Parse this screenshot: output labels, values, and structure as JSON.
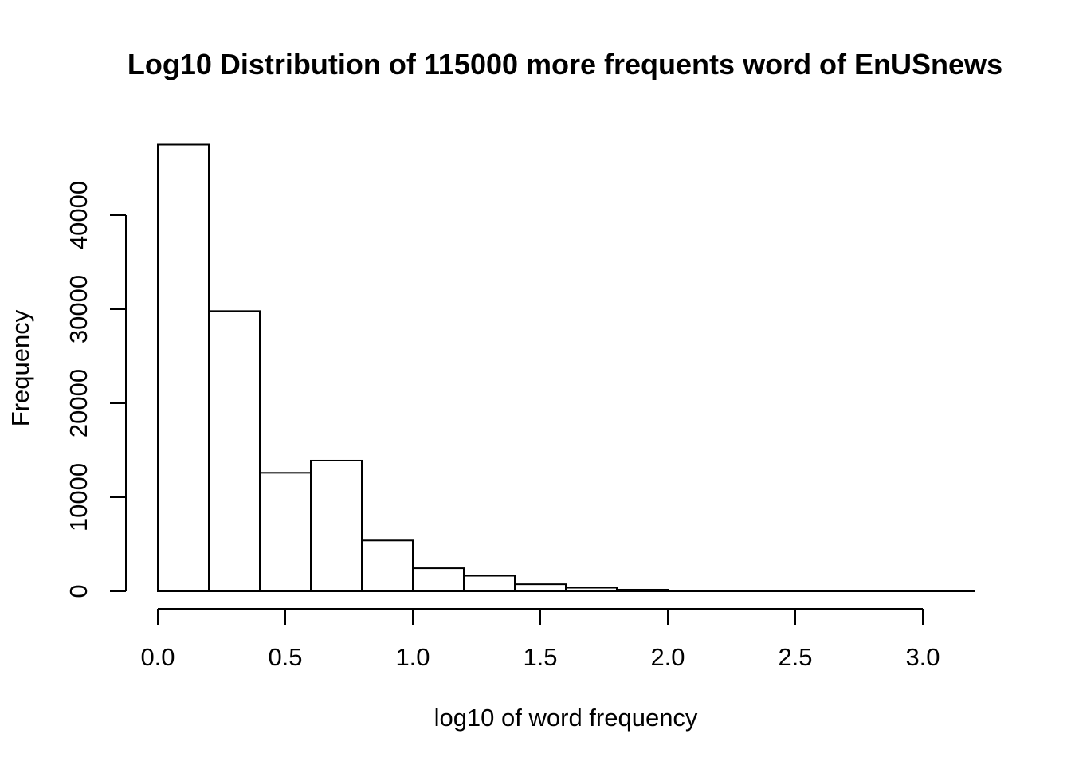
{
  "chart_data": {
    "type": "bar",
    "title": "Log10 Distribution of 115000 more frequents word of EnUSnews",
    "xlabel": "log10 of word frequency",
    "ylabel": "Frequency",
    "bins": [
      {
        "x0": 0.0,
        "x1": 0.2,
        "count": 47500
      },
      {
        "x0": 0.2,
        "x1": 0.4,
        "count": 29800
      },
      {
        "x0": 0.4,
        "x1": 0.6,
        "count": 12600
      },
      {
        "x0": 0.6,
        "x1": 0.8,
        "count": 13900
      },
      {
        "x0": 0.8,
        "x1": 1.0,
        "count": 5400
      },
      {
        "x0": 1.0,
        "x1": 1.2,
        "count": 2450
      },
      {
        "x0": 1.2,
        "x1": 1.4,
        "count": 1650
      },
      {
        "x0": 1.4,
        "x1": 1.6,
        "count": 750
      },
      {
        "x0": 1.6,
        "x1": 1.8,
        "count": 380
      },
      {
        "x0": 1.8,
        "x1": 2.0,
        "count": 170
      },
      {
        "x0": 2.0,
        "x1": 2.2,
        "count": 80
      },
      {
        "x0": 2.2,
        "x1": 2.4,
        "count": 35
      },
      {
        "x0": 2.4,
        "x1": 2.6,
        "count": 15
      },
      {
        "x0": 2.6,
        "x1": 2.8,
        "count": 6
      },
      {
        "x0": 2.8,
        "x1": 3.0,
        "count": 3
      },
      {
        "x0": 3.0,
        "x1": 3.2,
        "count": 1
      }
    ],
    "xlim": [
      0.0,
      3.2
    ],
    "ylim": [
      0,
      47500
    ],
    "x_ticks": [
      "0.0",
      "0.5",
      "1.0",
      "1.5",
      "2.0",
      "2.5",
      "3.0"
    ],
    "y_ticks": [
      "0",
      "10000",
      "20000",
      "30000",
      "40000"
    ],
    "grid": false,
    "legend": "none"
  }
}
